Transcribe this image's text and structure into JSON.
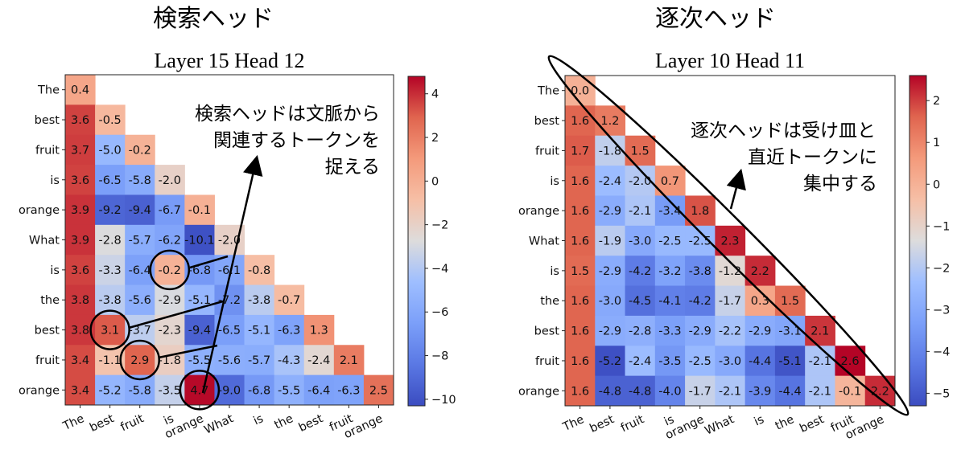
{
  "chart_data": [
    {
      "type": "heatmap",
      "heading": "検索ヘッド",
      "title": "Layer 15 Head 12",
      "tokens": [
        "The",
        "best",
        "fruit",
        "is",
        "orange",
        "What",
        "is",
        "the",
        "best",
        "fruit",
        "orange"
      ],
      "values": [
        [
          0.4
        ],
        [
          3.6,
          -0.5
        ],
        [
          3.7,
          -5.0,
          -0.2
        ],
        [
          3.6,
          -6.5,
          -5.8,
          -2.0
        ],
        [
          3.9,
          -9.2,
          -9.4,
          -6.7,
          -0.1
        ],
        [
          3.9,
          -2.8,
          -5.7,
          -6.2,
          -10.1,
          -2.0
        ],
        [
          3.6,
          -3.3,
          -6.4,
          -0.2,
          -6.8,
          -6.1,
          -0.8
        ],
        [
          3.8,
          -3.8,
          -5.6,
          -2.9,
          -5.1,
          -7.2,
          -3.8,
          -0.7
        ],
        [
          3.8,
          3.1,
          -3.7,
          -2.3,
          -9.4,
          -6.5,
          -5.1,
          -6.3,
          1.3
        ],
        [
          3.4,
          -1.1,
          2.9,
          -1.8,
          -5.5,
          -5.6,
          -5.7,
          -4.3,
          -2.4,
          2.1
        ],
        [
          3.4,
          -5.2,
          -5.8,
          -3.5,
          4.7,
          -9.0,
          -6.8,
          -5.5,
          -6.4,
          -6.3,
          2.5
        ]
      ],
      "color_range": [
        -10.3,
        4.8
      ],
      "colorbar_ticks": [
        "4",
        "2",
        "0",
        "−2",
        "−4",
        "−6",
        "−8",
        "−10"
      ],
      "colorbar_tick_values": [
        4,
        2,
        0,
        -2,
        -4,
        -6,
        -8,
        -10
      ],
      "annotation_lines": [
        "検索ヘッドは文脈から",
        "関連するトークンを",
        "捉える"
      ],
      "highlighted_cells": [
        [
          6,
          3
        ],
        [
          8,
          1
        ],
        [
          9,
          2
        ],
        [
          10,
          4
        ]
      ]
    },
    {
      "type": "heatmap",
      "heading": "逐次ヘッド",
      "title": "Layer 10 Head 11",
      "tokens": [
        "The",
        "best",
        "fruit",
        "is",
        "orange",
        "What",
        "is",
        "the",
        "best",
        "fruit",
        "orange"
      ],
      "values": [
        [
          0.0
        ],
        [
          1.6,
          1.2
        ],
        [
          1.7,
          -1.8,
          1.5
        ],
        [
          1.6,
          -2.4,
          -2.0,
          0.7
        ],
        [
          1.6,
          -2.9,
          -2.1,
          -3.4,
          1.8
        ],
        [
          1.6,
          -1.9,
          -3.0,
          -2.5,
          -2.5,
          2.3
        ],
        [
          1.5,
          -2.9,
          -4.2,
          -3.2,
          -3.8,
          -1.2,
          2.2
        ],
        [
          1.6,
          -3.0,
          -4.5,
          -4.1,
          -4.2,
          -1.7,
          0.3,
          1.5
        ],
        [
          1.6,
          -2.9,
          -2.8,
          -3.3,
          -2.9,
          -2.2,
          -2.9,
          -3.1,
          2.1
        ],
        [
          1.6,
          -5.2,
          -2.4,
          -3.5,
          -2.5,
          -3.0,
          -4.4,
          -5.1,
          -2.1,
          2.6
        ],
        [
          1.6,
          -4.8,
          -4.8,
          -4.0,
          -1.7,
          -2.1,
          -3.9,
          -4.4,
          -2.1,
          -0.1,
          2.2
        ]
      ],
      "color_range": [
        -5.3,
        2.6
      ],
      "colorbar_ticks": [
        "2",
        "1",
        "0",
        "−1",
        "−2",
        "−3",
        "−4",
        "−5"
      ],
      "colorbar_tick_values": [
        2,
        1,
        0,
        -1,
        -2,
        -3,
        -4,
        -5
      ],
      "annotation_lines": [
        "逐次ヘッドは受け皿と",
        "直近トークンに",
        "集中する"
      ]
    }
  ]
}
